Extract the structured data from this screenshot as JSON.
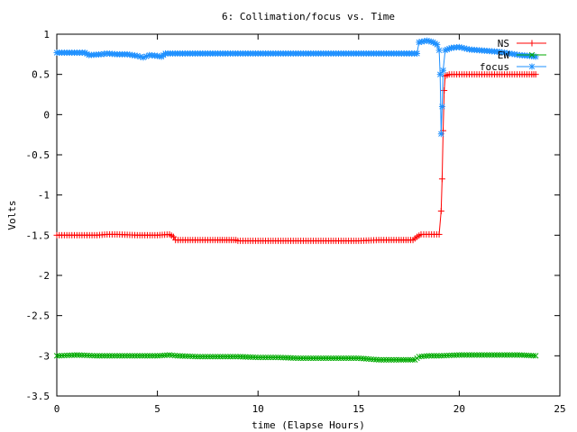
{
  "chart_data": {
    "type": "line",
    "title": "6: Collimation/focus vs. Time",
    "xlabel": "time (Elapse Hours)",
    "ylabel": "Volts",
    "xlim": [
      0,
      25
    ],
    "ylim": [
      -3.5,
      1
    ],
    "x_ticks": [
      0,
      5,
      10,
      15,
      20,
      25
    ],
    "y_ticks": [
      1,
      0.5,
      0,
      -0.5,
      -1,
      -1.5,
      -2,
      -2.5,
      -3,
      -3.5
    ],
    "x_tick_labels": [
      "0",
      "5",
      "10",
      "15",
      "20",
      "25"
    ],
    "y_tick_labels": [
      "1",
      "0.5",
      "0",
      "-0.5",
      "-1",
      "-1.5",
      "-2",
      "-2.5",
      "-3",
      "-3.5"
    ],
    "grid": false,
    "legend_position": "top-right",
    "series": [
      {
        "name": "NS",
        "color": "#ff0000",
        "marker": "+",
        "points": [
          [
            0,
            -1.5
          ],
          [
            1,
            -1.5
          ],
          [
            2,
            -1.5
          ],
          [
            2.5,
            -1.49
          ],
          [
            3,
            -1.49
          ],
          [
            4,
            -1.5
          ],
          [
            5,
            -1.5
          ],
          [
            5.6,
            -1.49
          ],
          [
            5.8,
            -1.52
          ],
          [
            5.9,
            -1.56
          ],
          [
            7,
            -1.56
          ],
          [
            8,
            -1.56
          ],
          [
            8.9,
            -1.56
          ],
          [
            9,
            -1.57
          ],
          [
            10,
            -1.57
          ],
          [
            11,
            -1.57
          ],
          [
            12,
            -1.57
          ],
          [
            13,
            -1.57
          ],
          [
            14,
            -1.57
          ],
          [
            15,
            -1.57
          ],
          [
            16,
            -1.56
          ],
          [
            17,
            -1.56
          ],
          [
            17.7,
            -1.56
          ],
          [
            17.9,
            -1.52
          ],
          [
            18.1,
            -1.49
          ],
          [
            18.5,
            -1.49
          ],
          [
            19,
            -1.49
          ],
          [
            19.1,
            -1.2
          ],
          [
            19.15,
            -0.8
          ],
          [
            19.2,
            -0.2
          ],
          [
            19.25,
            0.3
          ],
          [
            19.3,
            0.48
          ],
          [
            19.5,
            0.5
          ],
          [
            20,
            0.5
          ],
          [
            21,
            0.5
          ],
          [
            22,
            0.5
          ],
          [
            23,
            0.5
          ],
          [
            23.6,
            0.5
          ],
          [
            23.8,
            0.5
          ]
        ]
      },
      {
        "name": "EW",
        "color": "#00aa00",
        "marker": "x",
        "points": [
          [
            0,
            -3.0
          ],
          [
            1,
            -2.99
          ],
          [
            2,
            -3.0
          ],
          [
            3,
            -3.0
          ],
          [
            4,
            -3.0
          ],
          [
            5,
            -3.0
          ],
          [
            5.6,
            -2.99
          ],
          [
            6,
            -3.0
          ],
          [
            7,
            -3.01
          ],
          [
            8,
            -3.01
          ],
          [
            9,
            -3.01
          ],
          [
            10,
            -3.02
          ],
          [
            11,
            -3.02
          ],
          [
            12,
            -3.03
          ],
          [
            13,
            -3.03
          ],
          [
            14,
            -3.03
          ],
          [
            15,
            -3.03
          ],
          [
            16,
            -3.05
          ],
          [
            17,
            -3.05
          ],
          [
            17.8,
            -3.05
          ],
          [
            18,
            -3.01
          ],
          [
            18.5,
            -3.0
          ],
          [
            19,
            -3.0
          ],
          [
            20,
            -2.99
          ],
          [
            21,
            -2.99
          ],
          [
            22,
            -2.99
          ],
          [
            23,
            -2.99
          ],
          [
            23.8,
            -3.0
          ]
        ]
      },
      {
        "name": "focus",
        "color": "#1e90ff",
        "marker": "*",
        "points": [
          [
            0,
            0.77
          ],
          [
            1,
            0.77
          ],
          [
            1.4,
            0.77
          ],
          [
            1.6,
            0.74
          ],
          [
            2.2,
            0.75
          ],
          [
            2.5,
            0.76
          ],
          [
            3,
            0.75
          ],
          [
            3.5,
            0.75
          ],
          [
            4,
            0.73
          ],
          [
            4.3,
            0.71
          ],
          [
            4.6,
            0.74
          ],
          [
            5,
            0.73
          ],
          [
            5.2,
            0.72
          ],
          [
            5.4,
            0.76
          ],
          [
            6,
            0.76
          ],
          [
            7,
            0.76
          ],
          [
            8,
            0.76
          ],
          [
            9,
            0.76
          ],
          [
            10,
            0.76
          ],
          [
            11,
            0.76
          ],
          [
            12,
            0.76
          ],
          [
            13,
            0.76
          ],
          [
            14,
            0.76
          ],
          [
            15,
            0.76
          ],
          [
            16,
            0.76
          ],
          [
            17,
            0.76
          ],
          [
            17.9,
            0.76
          ],
          [
            18,
            0.9
          ],
          [
            18.4,
            0.92
          ],
          [
            18.7,
            0.9
          ],
          [
            18.9,
            0.87
          ],
          [
            19.0,
            0.8
          ],
          [
            19.05,
            0.5
          ],
          [
            19.1,
            -0.24
          ],
          [
            19.15,
            0.1
          ],
          [
            19.2,
            0.55
          ],
          [
            19.3,
            0.8
          ],
          [
            19.6,
            0.83
          ],
          [
            20,
            0.84
          ],
          [
            20.5,
            0.81
          ],
          [
            21,
            0.8
          ],
          [
            21.5,
            0.79
          ],
          [
            22,
            0.78
          ],
          [
            22.5,
            0.76
          ],
          [
            23,
            0.74
          ],
          [
            23.5,
            0.73
          ],
          [
            23.8,
            0.72
          ]
        ]
      }
    ]
  }
}
